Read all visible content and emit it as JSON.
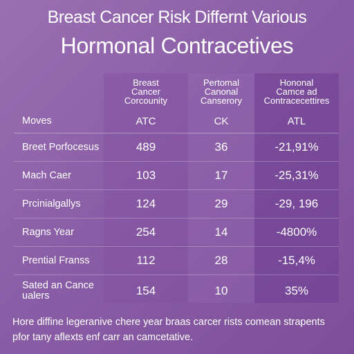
{
  "title": {
    "line1": "Breast Cancer Risk Differnt Various",
    "line2": "Hormonal Contracetives"
  },
  "table": {
    "columns": [
      {
        "header": ""
      },
      {
        "header": "Breast\nCancer\nCorcounity"
      },
      {
        "header": "Pertomal\nCanonal\nCanserory"
      },
      {
        "header": "Hononal\nCamce ad\nContracecettires"
      }
    ],
    "codes_row": {
      "label": "Moves",
      "values": [
        "ATC",
        "CK",
        "ATL"
      ]
    },
    "rows": [
      {
        "label": "Breet Porfocesus",
        "values": [
          "489",
          "36",
          "-21,91%"
        ]
      },
      {
        "label": "Mach Caer",
        "values": [
          "103",
          "17",
          "-25,31%"
        ]
      },
      {
        "label": "Prcinialgallys",
        "values": [
          "124",
          "29",
          "-29, 196"
        ]
      },
      {
        "label": "Ragns Year",
        "values": [
          "254",
          "14",
          "-4800%"
        ]
      },
      {
        "label": "Prential Franss",
        "values": [
          "112",
          "28",
          "-15,4%"
        ]
      },
      {
        "label": "Sated an Cance\nualers",
        "values": [
          "154",
          "10",
          "35%"
        ]
      }
    ]
  },
  "footnote": "Hore diffine legeranive chere year braas carcer rists comean strapents pfor tany aflexts enf carr an camcetative.",
  "colors": {
    "background_start": "#9a6fb2",
    "background_end": "#7d4f99",
    "text": "#ffffff"
  }
}
